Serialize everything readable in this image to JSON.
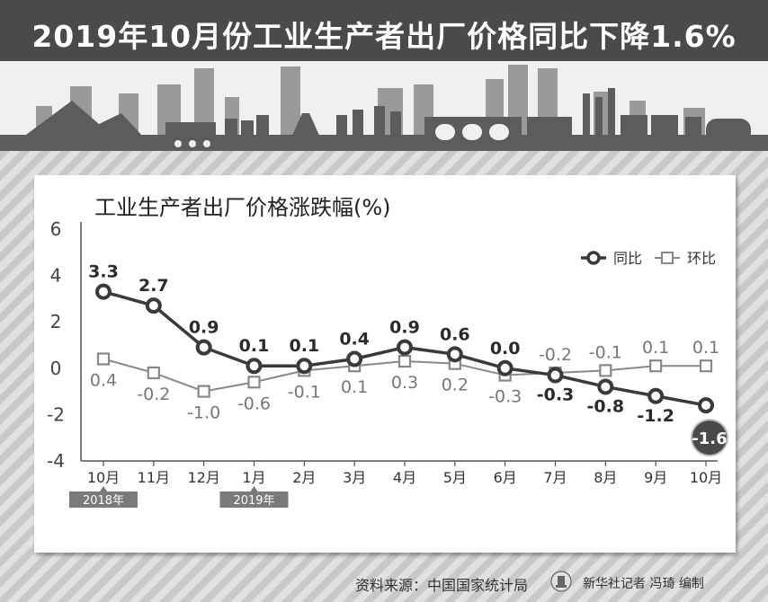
{
  "title": "2019年10月份工业生产者出厂价格同比下降1.6%",
  "footer": {
    "source": "资料来源：中国国家统计局",
    "credit": "新华社记者 冯琦 编制"
  },
  "colors": {
    "yoy": "#3a3a3a",
    "mom": "#888888",
    "banner": "#4a4a4a"
  },
  "chart_data": {
    "type": "line",
    "title": "工业生产者出厂价格涨跌幅(%)",
    "categories": [
      "10月",
      "11月",
      "12月",
      "1月",
      "2月",
      "3月",
      "4月",
      "5月",
      "6月",
      "7月",
      "8月",
      "9月",
      "10月"
    ],
    "year_labels": [
      {
        "label": "2018年",
        "index": 0
      },
      {
        "label": "2019年",
        "index": 3
      }
    ],
    "yticks": [
      6,
      4,
      2,
      0,
      -2,
      -4
    ],
    "ylim": [
      -4,
      6
    ],
    "grid": false,
    "legend_position": "top-right",
    "series": [
      {
        "name": "同比",
        "values": [
          3.3,
          2.7,
          0.9,
          0.1,
          0.1,
          0.4,
          0.9,
          0.6,
          0.0,
          -0.3,
          -0.8,
          -1.2,
          -1.6
        ],
        "labels": [
          "3.3",
          "2.7",
          "0.9",
          "0.1",
          "0.1",
          "0.4",
          "0.9",
          "0.6",
          "0.0",
          "-0.3",
          "-0.8",
          "-1.2",
          "-1.6"
        ]
      },
      {
        "name": "环比",
        "values": [
          0.4,
          -0.2,
          -1.0,
          -0.6,
          -0.1,
          0.1,
          0.3,
          0.2,
          -0.3,
          -0.2,
          -0.1,
          0.1,
          0.1
        ],
        "labels": [
          "0.4",
          "-0.2",
          "-1.0",
          "-0.6",
          "-0.1",
          "0.1",
          "0.3",
          "0.2",
          "-0.3",
          "-0.2",
          "-0.1",
          "0.1",
          "0.1"
        ]
      }
    ]
  }
}
